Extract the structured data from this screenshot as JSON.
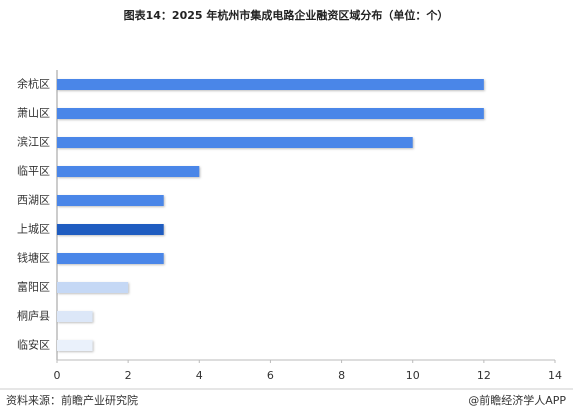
{
  "chart_data": {
    "type": "barh",
    "title": "图表14：2025 年杭州市集成电路企业融资区域分布（单位：个）",
    "categories": [
      "余杭区",
      "萧山区",
      "滨江区",
      "临平区",
      "西湖区",
      "上城区",
      "钱塘区",
      "富阳区",
      "桐庐县",
      "临安区"
    ],
    "values": [
      12,
      12,
      10,
      4,
      3,
      3,
      3,
      2,
      1,
      1
    ],
    "colors": [
      "#4a86e8",
      "#4a86e8",
      "#4a86e8",
      "#4a86e8",
      "#4a86e8",
      "#1f5cc0",
      "#4a86e8",
      "#c5d8f5",
      "#dce7f8",
      "#eaf1fb"
    ],
    "xlim": [
      0,
      14
    ],
    "xticks": [
      0,
      2,
      4,
      6,
      8,
      10,
      12,
      14
    ],
    "grid": false,
    "source": "资料来源：前瞻产业研究院",
    "credit": "@前瞻经济学人APP"
  }
}
